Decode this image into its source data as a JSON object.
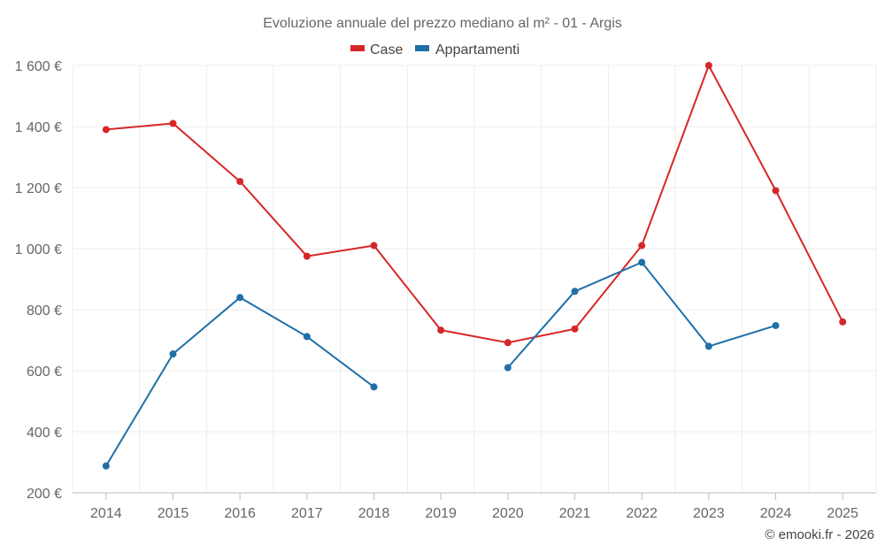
{
  "chart_data": {
    "type": "line",
    "title": "Evoluzione annuale del prezzo mediano al m² - 01 - Argis",
    "categories": [
      "2014",
      "2015",
      "2016",
      "2017",
      "2018",
      "2019",
      "2020",
      "2021",
      "2022",
      "2023",
      "2024",
      "2025"
    ],
    "ylim": [
      200,
      1600
    ],
    "yticks": [
      200,
      400,
      600,
      800,
      1000,
      1200,
      1400,
      1600
    ],
    "ytick_labels": [
      "200 €",
      "400 €",
      "600 €",
      "800 €",
      "1 000 €",
      "1 200 €",
      "1 400 €",
      "1 600 €"
    ],
    "grid": true,
    "legend_position": "top-center",
    "series": [
      {
        "name": "Case",
        "color": "#d62728",
        "values": [
          1390,
          1410,
          1220,
          975,
          1010,
          733,
          692,
          737,
          1010,
          1600,
          1190,
          760
        ]
      },
      {
        "name": "Appartamenti",
        "color": "#1f6fa8",
        "values": [
          288,
          655,
          840,
          712,
          547,
          null,
          610,
          860,
          955,
          680,
          748,
          null
        ]
      }
    ]
  },
  "credit": "© emooki.fr - 2026"
}
